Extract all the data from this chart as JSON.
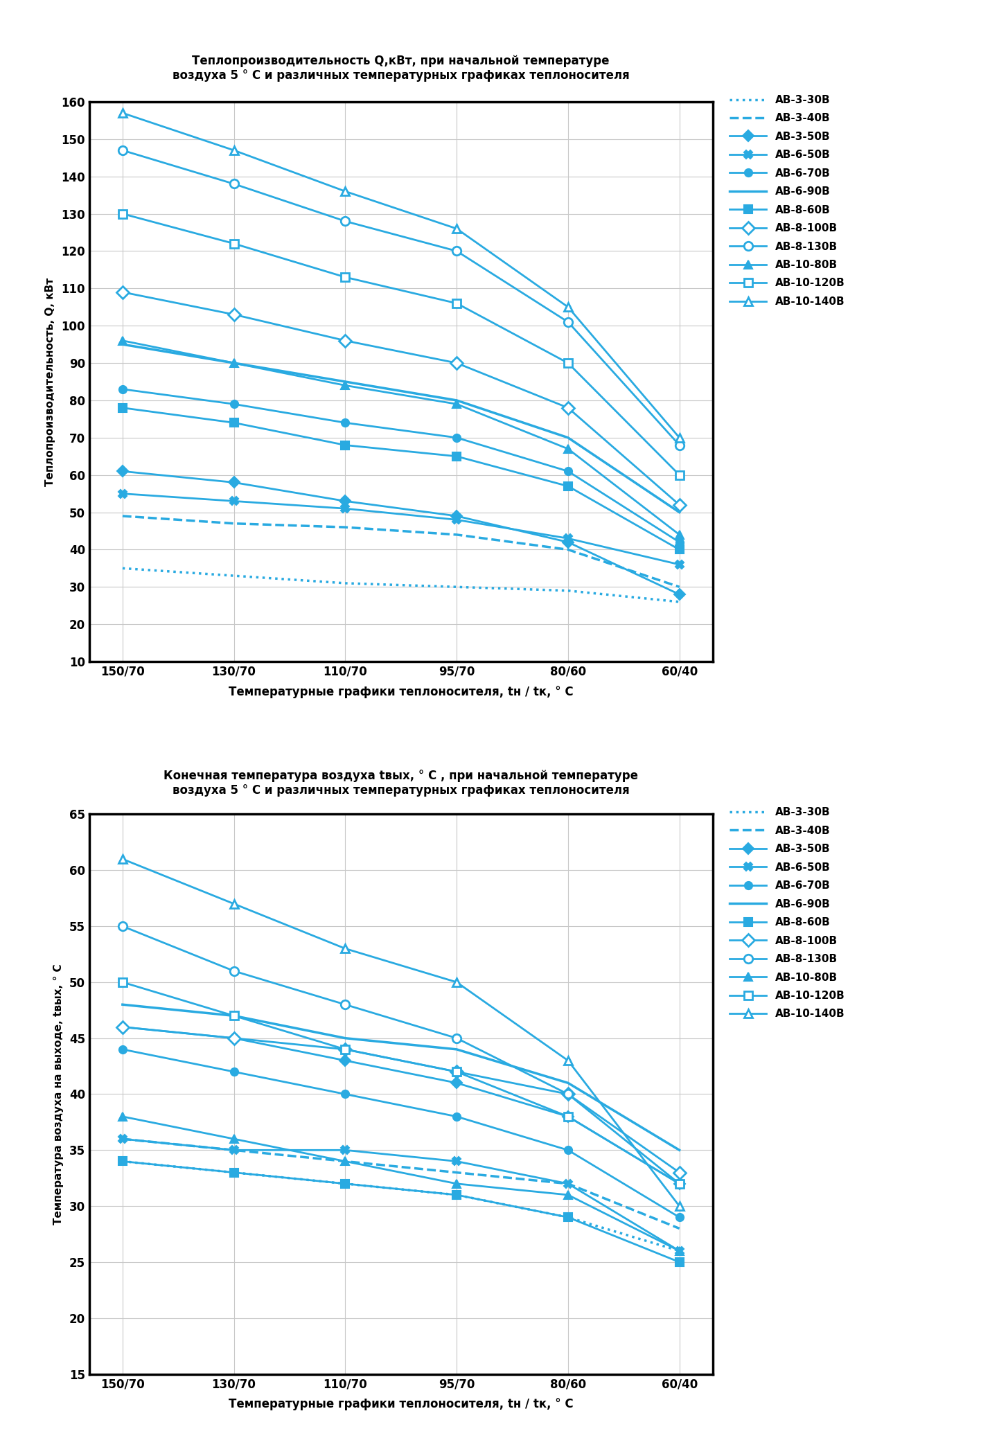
{
  "x_labels": [
    "150/70",
    "130/70",
    "110/70",
    "95/70",
    "80/60",
    "60/40"
  ],
  "x_values": [
    0,
    1,
    2,
    3,
    4,
    5
  ],
  "color": "#29aae1",
  "title1": "Теплопроизводительность Q,кВт, при начальной температуре\nвоздуха 5 ° С и различных температурных графиках теплоносителя",
  "title2": "Конечная температура воздуха tвых, ° С , при начальной температуре\nвоздуха 5 ° С и различных температурных графиках теплоносителя",
  "ylabel1": "Теплопроизводительность, Q, кВт",
  "ylabel2": "Температура воздуха на выходе, tвых, ° С",
  "xlabel": "Температурные графики теплоносителя, tн / tк, ° С",
  "series1": [
    {
      "name": "АВ-3-30В",
      "values": [
        35,
        33,
        31,
        30,
        29,
        26
      ],
      "linestyle": "dotted",
      "marker": "none",
      "linewidth": 2.5,
      "filled": false
    },
    {
      "name": "АВ-3-40В",
      "values": [
        49,
        47,
        46,
        44,
        40,
        30
      ],
      "linestyle": "dashed",
      "marker": "none",
      "linewidth": 2.5,
      "filled": false
    },
    {
      "name": "АВ-3-50В",
      "values": [
        61,
        58,
        53,
        49,
        42,
        28
      ],
      "linestyle": "solid",
      "marker": "D",
      "linewidth": 2.0,
      "filled": true
    },
    {
      "name": "АВ-6-50В",
      "values": [
        55,
        53,
        51,
        48,
        43,
        36
      ],
      "linestyle": "solid",
      "marker": "x",
      "linewidth": 2.0,
      "filled": true
    },
    {
      "name": "АВ-6-70В",
      "values": [
        83,
        79,
        74,
        70,
        61,
        42
      ],
      "linestyle": "solid",
      "marker": "o",
      "linewidth": 2.0,
      "filled": true
    },
    {
      "name": "АВ-6-90В",
      "values": [
        95,
        90,
        85,
        80,
        70,
        50
      ],
      "linestyle": "solid",
      "marker": "none",
      "linewidth": 2.5,
      "filled": false
    },
    {
      "name": "АВ-8-60В",
      "values": [
        78,
        74,
        68,
        65,
        57,
        40
      ],
      "linestyle": "solid",
      "marker": "s",
      "linewidth": 2.0,
      "filled": true
    },
    {
      "name": "АВ-8-100В",
      "values": [
        109,
        103,
        96,
        90,
        78,
        52
      ],
      "linestyle": "solid",
      "marker": "D",
      "linewidth": 2.0,
      "filled": false
    },
    {
      "name": "АВ-8-130В",
      "values": [
        147,
        138,
        128,
        120,
        101,
        68
      ],
      "linestyle": "solid",
      "marker": "o",
      "linewidth": 2.0,
      "filled": false
    },
    {
      "name": "АВ-10-80В",
      "values": [
        96,
        90,
        84,
        79,
        67,
        44
      ],
      "linestyle": "solid",
      "marker": "^",
      "linewidth": 2.0,
      "filled": true
    },
    {
      "name": "АВ-10-120В",
      "values": [
        130,
        122,
        113,
        106,
        90,
        60
      ],
      "linestyle": "solid",
      "marker": "s",
      "linewidth": 2.0,
      "filled": false
    },
    {
      "name": "АВ-10-140В",
      "values": [
        157,
        147,
        136,
        126,
        105,
        70
      ],
      "linestyle": "solid",
      "marker": "^",
      "linewidth": 2.0,
      "filled": false
    }
  ],
  "series2": [
    {
      "name": "АВ-3-30В",
      "values": [
        34,
        33,
        32,
        31,
        29,
        26
      ],
      "linestyle": "dotted",
      "marker": "none",
      "linewidth": 2.5,
      "filled": false
    },
    {
      "name": "АВ-3-40В",
      "values": [
        36,
        35,
        34,
        33,
        32,
        28
      ],
      "linestyle": "dashed",
      "marker": "none",
      "linewidth": 2.5,
      "filled": false
    },
    {
      "name": "АВ-3-50В",
      "values": [
        46,
        45,
        43,
        41,
        38,
        32
      ],
      "linestyle": "solid",
      "marker": "D",
      "linewidth": 2.0,
      "filled": true
    },
    {
      "name": "АВ-6-50В",
      "values": [
        36,
        35,
        35,
        34,
        32,
        26
      ],
      "linestyle": "solid",
      "marker": "x",
      "linewidth": 2.0,
      "filled": true
    },
    {
      "name": "АВ-6-70В",
      "values": [
        44,
        42,
        40,
        38,
        35,
        29
      ],
      "linestyle": "solid",
      "marker": "o",
      "linewidth": 2.0,
      "filled": true
    },
    {
      "name": "АВ-6-90В",
      "values": [
        48,
        47,
        45,
        44,
        41,
        35
      ],
      "linestyle": "solid",
      "marker": "none",
      "linewidth": 2.5,
      "filled": false
    },
    {
      "name": "АВ-8-60В",
      "values": [
        34,
        33,
        32,
        31,
        29,
        25
      ],
      "linestyle": "solid",
      "marker": "s",
      "linewidth": 2.0,
      "filled": true
    },
    {
      "name": "АВ-8-100В",
      "values": [
        46,
        45,
        44,
        42,
        40,
        33
      ],
      "linestyle": "solid",
      "marker": "D",
      "linewidth": 2.0,
      "filled": false
    },
    {
      "name": "АВ-8-130В",
      "values": [
        55,
        51,
        48,
        45,
        40,
        32
      ],
      "linestyle": "solid",
      "marker": "o",
      "linewidth": 2.0,
      "filled": false
    },
    {
      "name": "АВ-10-80В",
      "values": [
        38,
        36,
        34,
        32,
        31,
        26
      ],
      "linestyle": "solid",
      "marker": "^",
      "linewidth": 2.0,
      "filled": true
    },
    {
      "name": "АВ-10-120В",
      "values": [
        50,
        47,
        44,
        42,
        38,
        32
      ],
      "linestyle": "solid",
      "marker": "s",
      "linewidth": 2.0,
      "filled": false
    },
    {
      "name": "АВ-10-140В",
      "values": [
        61,
        57,
        53,
        50,
        43,
        30
      ],
      "linestyle": "solid",
      "marker": "^",
      "linewidth": 2.0,
      "filled": false
    }
  ],
  "ylim1": [
    10,
    160
  ],
  "ylim2": [
    15,
    65
  ],
  "yticks1": [
    10,
    20,
    30,
    40,
    50,
    60,
    70,
    80,
    90,
    100,
    110,
    120,
    130,
    140,
    150,
    160
  ],
  "yticks2": [
    15,
    20,
    25,
    30,
    35,
    40,
    45,
    50,
    55,
    60,
    65
  ],
  "background": "#ffffff",
  "grid_color": "#c8c8c8"
}
